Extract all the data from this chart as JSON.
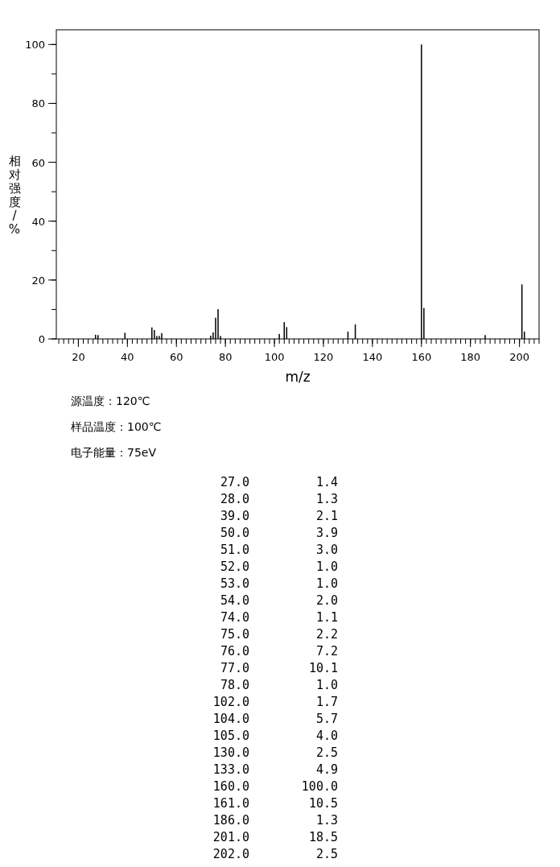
{
  "chart_data": [
    {
      "type": "bar",
      "xlabel": "m/z",
      "ylabel": "相对强度/%",
      "color": "#000000",
      "x": [
        27,
        28,
        39,
        50,
        51,
        52,
        53,
        54,
        74,
        75,
        76,
        77,
        78,
        102,
        104,
        105,
        130,
        133,
        160,
        161,
        186,
        201,
        202
      ],
      "values": [
        1.4,
        1.3,
        2.1,
        3.9,
        3.0,
        1.0,
        1.0,
        2.0,
        1.1,
        2.2,
        7.2,
        10.1,
        1.0,
        1.7,
        5.7,
        4.0,
        2.5,
        4.9,
        100.0,
        10.5,
        1.3,
        18.5,
        2.5
      ],
      "xlim": [
        11,
        208
      ],
      "ylim": [
        0,
        105
      ],
      "xticks": [
        20,
        40,
        60,
        80,
        100,
        120,
        140,
        160,
        180,
        200
      ],
      "yticks": [
        0,
        20,
        40,
        60,
        80,
        100
      ],
      "annotations": [
        "源温度：120℃",
        "样品温度：100℃",
        "电子能量：75eV"
      ]
    },
    {
      "type": "other",
      "annotations": [
        "27.0",
        "1.4",
        "28.0",
        "1.3",
        "39.0",
        "2.1",
        "50.0",
        "3.9",
        "51.0",
        "3.0",
        "52.0",
        "1.0",
        "53.0",
        "1.0",
        "54.0",
        "2.0",
        "74.0",
        "1.1",
        "75.0",
        "2.2",
        "76.0",
        "7.2",
        "77.0",
        "10.1",
        "78.0",
        "1.0",
        "102.0",
        "1.7",
        "104.0",
        "5.7",
        "105.0",
        "4.0",
        "130.0",
        "2.5",
        "133.0",
        "4.9",
        "160.0",
        "100.0",
        "161.0",
        "10.5",
        "186.0",
        "1.3",
        "201.0",
        "18.5",
        "202.0",
        "2.5"
      ]
    }
  ]
}
